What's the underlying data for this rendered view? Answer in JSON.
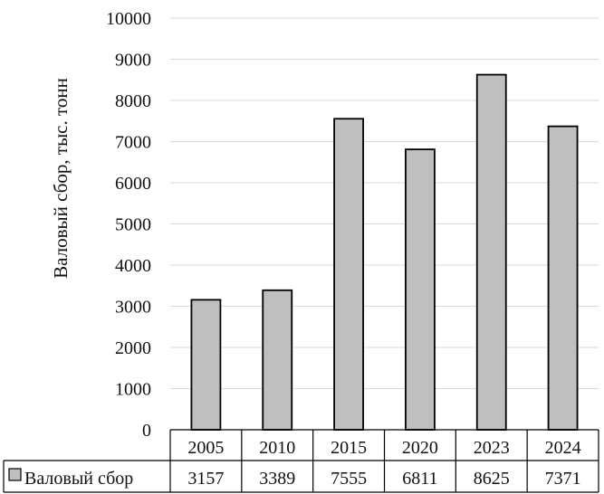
{
  "chart_data": {
    "type": "bar",
    "categories": [
      "2005",
      "2010",
      "2015",
      "2020",
      "2023",
      "2024"
    ],
    "series": [
      {
        "name": "Валовый сбор",
        "values": [
          3157,
          3389,
          7555,
          6811,
          8625,
          7371
        ]
      }
    ],
    "ylabel": "Валовый сбор, тыс. тонн",
    "ylim": [
      0,
      10000
    ],
    "yticks": [
      0,
      1000,
      2000,
      3000,
      4000,
      5000,
      6000,
      7000,
      8000,
      9000,
      10000
    ],
    "grid": true,
    "legend_placement": "data-table-row",
    "data_table": true,
    "colors": {
      "bar_fill": "#bfbfbf",
      "bar_stroke": "#000000",
      "grid": "#d9d9d9",
      "table_border": "#000000"
    }
  }
}
